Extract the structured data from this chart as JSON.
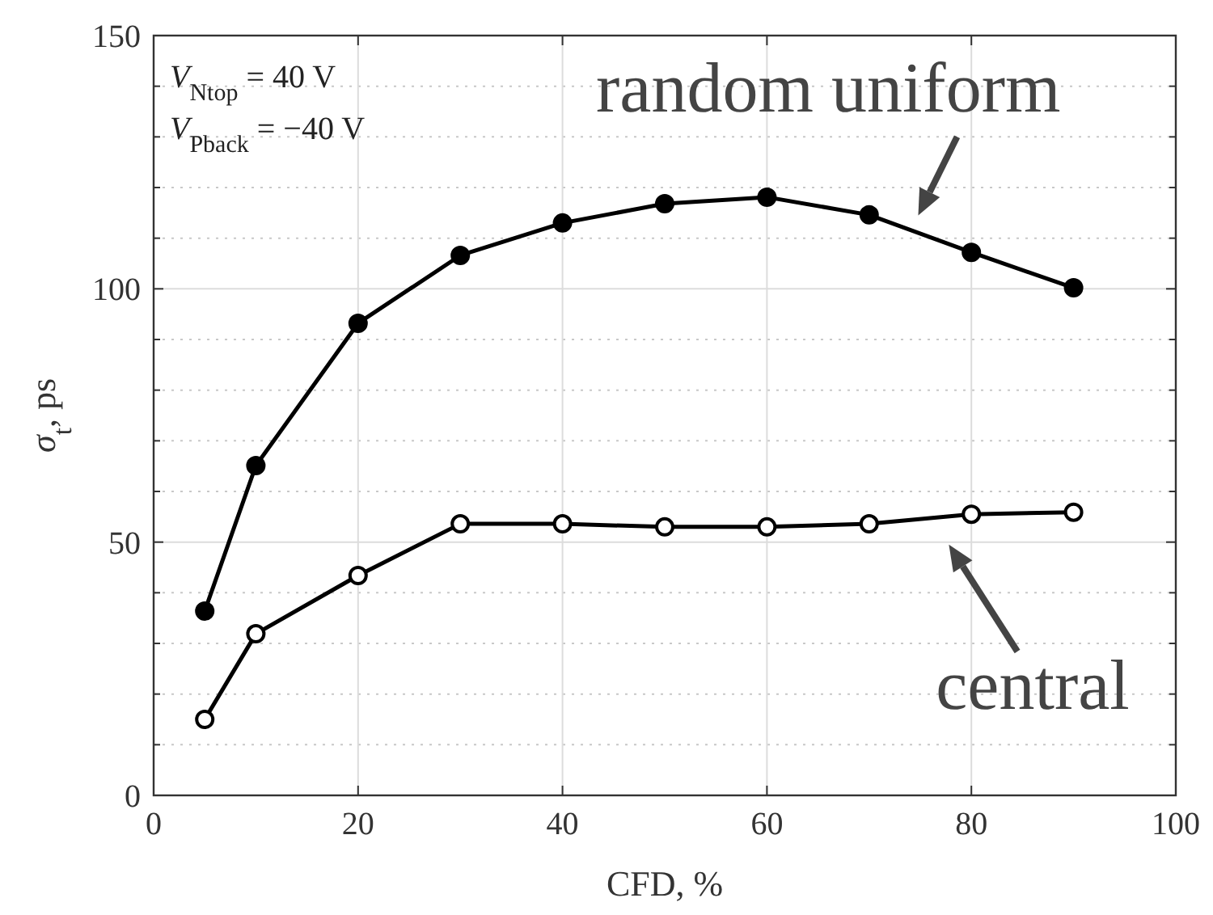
{
  "chart_data": {
    "type": "line",
    "xlabel": "CFD, %",
    "ylabel": "σ$_{t}$, ps",
    "x": [
      5,
      10,
      20,
      30,
      40,
      50,
      60,
      70,
      80,
      90
    ],
    "xlim": [
      0,
      100
    ],
    "xticks": [
      0,
      20,
      40,
      60,
      80,
      100
    ],
    "ylim": [
      0,
      150
    ],
    "yticks": [
      0,
      50,
      100,
      150
    ],
    "grid": true,
    "marker": "circle",
    "line_style": "solid",
    "annotations": [
      "V$_{Ntop}$ = 40 V",
      "V$_{Pback}$ = −40 V"
    ],
    "series": [
      {
        "name": "random uniform",
        "color": "#000000",
        "values": [
          36.4,
          65.1,
          93.2,
          106.6,
          113,
          116.8,
          118.1,
          114.6,
          107.2,
          100.2
        ]
      },
      {
        "name": "central",
        "color": "#000000",
        "values": [
          15,
          31.9,
          43.4,
          53.6,
          53.6,
          53,
          53,
          53.6,
          55.5,
          55.9
        ]
      }
    ]
  }
}
